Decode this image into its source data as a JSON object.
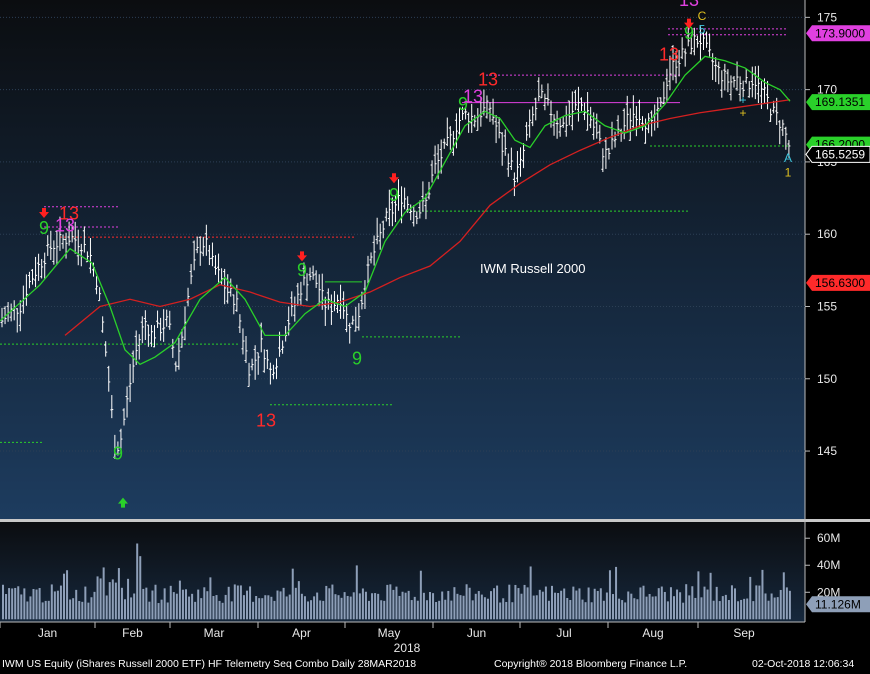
{
  "footer": {
    "left": "IWM US Equity (iShares Russell 2000 ETF) HF Telemetry Seq Combo  Daily 28MAR2018",
    "center": "Copyright® 2018 Bloomberg Finance L.P.",
    "right": "02-Oct-2018 12:06:34"
  },
  "colors": {
    "background_top": "#0b0d10",
    "background_bottom": "#1d3c5f",
    "price_bar": "#ffffff",
    "ma_fast": "#2ad02a",
    "ma_slow": "#d42020",
    "magenta_level": "#e040e0",
    "green_level": "#2ad02a",
    "red_level": "#ff2a2a",
    "volume": "#8e9fb8"
  },
  "chart_data": {
    "type": "line",
    "series_label": "IWM Russell 2000",
    "x_months": [
      "Jan",
      "Feb",
      "Mar",
      "Apr",
      "May",
      "Jun",
      "Jul",
      "Aug",
      "Sep"
    ],
    "x_year_label": "2018",
    "y_ticks": [
      145,
      150,
      155,
      160,
      165,
      170,
      175
    ],
    "ylim": [
      140.3,
      176.2
    ],
    "volume_ticks": [
      "60M",
      "40M",
      "20M"
    ],
    "volume_tick_values": [
      60,
      40,
      20
    ],
    "volume_ylim": [
      -2,
      72
    ],
    "price_tags": [
      {
        "value": 173.9,
        "label": "173.9000",
        "color": "#e040e0"
      },
      {
        "value": 169.1351,
        "label": "169.1351",
        "color": "#2ad02a"
      },
      {
        "value": 166.2,
        "label": "166.2000",
        "color": "#2ad02a"
      },
      {
        "value": 165.5259,
        "label": "165.5259",
        "color": "#ffffff"
      },
      {
        "value": 156.63,
        "label": "156.6300",
        "color": "#ff2a2a"
      }
    ],
    "volume_tag": {
      "value": 11.126,
      "label": "11.126M"
    },
    "key_points": [
      [
        2,
        154.0
      ],
      [
        10,
        154.6
      ],
      [
        20,
        155.0
      ],
      [
        28,
        156.5
      ],
      [
        36,
        157.5
      ],
      [
        44,
        158.4
      ],
      [
        52,
        159.2
      ],
      [
        60,
        159.5
      ],
      [
        70,
        159.8
      ],
      [
        80,
        159.5
      ],
      [
        90,
        158.6
      ],
      [
        98,
        156.5
      ],
      [
        104,
        153.0
      ],
      [
        110,
        149.0
      ],
      [
        115,
        145.2
      ],
      [
        120,
        145.5
      ],
      [
        126,
        148.0
      ],
      [
        132,
        150.5
      ],
      [
        138,
        152.5
      ],
      [
        145,
        154.0
      ],
      [
        152,
        153.0
      ],
      [
        160,
        153.5
      ],
      [
        168,
        154.0
      ],
      [
        176,
        151.0
      ],
      [
        182,
        153.0
      ],
      [
        190,
        156.5
      ],
      [
        198,
        159.0
      ],
      [
        205,
        159.5
      ],
      [
        212,
        158.0
      ],
      [
        220,
        157.0
      ],
      [
        228,
        156.0
      ],
      [
        236,
        155.5
      ],
      [
        244,
        152.5
      ],
      [
        250,
        150.5
      ],
      [
        256,
        151.5
      ],
      [
        262,
        152.5
      ],
      [
        270,
        150.5
      ],
      [
        278,
        151.5
      ],
      [
        286,
        153.5
      ],
      [
        294,
        155.0
      ],
      [
        302,
        156.5
      ],
      [
        310,
        157.2
      ],
      [
        318,
        156.5
      ],
      [
        324,
        155.2
      ],
      [
        332,
        155.0
      ],
      [
        340,
        155.8
      ],
      [
        348,
        154.0
      ],
      [
        356,
        153.8
      ],
      [
        362,
        155.5
      ],
      [
        370,
        158.0
      ],
      [
        378,
        159.5
      ],
      [
        386,
        161.0
      ],
      [
        394,
        161.8
      ],
      [
        402,
        162.7
      ],
      [
        410,
        162.0
      ],
      [
        418,
        161.5
      ],
      [
        426,
        162.2
      ],
      [
        434,
        164.5
      ],
      [
        442,
        165.5
      ],
      [
        450,
        166.5
      ],
      [
        458,
        167.8
      ],
      [
        466,
        168.3
      ],
      [
        474,
        168.0
      ],
      [
        482,
        168.5
      ],
      [
        490,
        168.8
      ],
      [
        496,
        167.5
      ],
      [
        502,
        166.0
      ],
      [
        508,
        165.5
      ],
      [
        514,
        164.0
      ],
      [
        520,
        164.6
      ],
      [
        526,
        166.5
      ],
      [
        532,
        168.0
      ],
      [
        540,
        169.5
      ],
      [
        548,
        168.8
      ],
      [
        556,
        168.0
      ],
      [
        564,
        167.5
      ],
      [
        572,
        168.5
      ],
      [
        580,
        169.0
      ],
      [
        588,
        168.5
      ],
      [
        596,
        167.0
      ],
      [
        602,
        165.8
      ],
      [
        608,
        165.5
      ],
      [
        614,
        166.5
      ],
      [
        620,
        167.0
      ],
      [
        628,
        168.0
      ],
      [
        636,
        168.5
      ],
      [
        644,
        168.0
      ],
      [
        652,
        167.3
      ],
      [
        660,
        168.5
      ],
      [
        668,
        171.0
      ],
      [
        676,
        172.0
      ],
      [
        684,
        172.5
      ],
      [
        692,
        173.3
      ],
      [
        700,
        173.5
      ],
      [
        708,
        172.5
      ],
      [
        716,
        171.5
      ],
      [
        722,
        171.0
      ],
      [
        730,
        170.5
      ],
      [
        738,
        170.8
      ],
      [
        746,
        170.3
      ],
      [
        754,
        170.8
      ],
      [
        760,
        170.0
      ],
      [
        766,
        169.5
      ],
      [
        772,
        168.5
      ],
      [
        778,
        168.0
      ],
      [
        784,
        167.3
      ],
      [
        788,
        166.3
      ],
      [
        792,
        165.5
      ]
    ],
    "ma_fast": [
      [
        0,
        154.0
      ],
      [
        40,
        156.5
      ],
      [
        70,
        159.0
      ],
      [
        92,
        158.0
      ],
      [
        110,
        155.0
      ],
      [
        125,
        152.0
      ],
      [
        140,
        151.0
      ],
      [
        155,
        151.5
      ],
      [
        175,
        152.5
      ],
      [
        200,
        155.5
      ],
      [
        225,
        157.0
      ],
      [
        245,
        155.5
      ],
      [
        265,
        153.0
      ],
      [
        285,
        153.0
      ],
      [
        305,
        154.5
      ],
      [
        325,
        155.5
      ],
      [
        345,
        155.0
      ],
      [
        365,
        156.0
      ],
      [
        385,
        159.5
      ],
      [
        405,
        161.5
      ],
      [
        425,
        162.5
      ],
      [
        445,
        165.0
      ],
      [
        465,
        167.5
      ],
      [
        485,
        168.5
      ],
      [
        500,
        168.0
      ],
      [
        515,
        166.5
      ],
      [
        530,
        166.0
      ],
      [
        545,
        167.5
      ],
      [
        565,
        168.2
      ],
      [
        585,
        168.5
      ],
      [
        605,
        167.5
      ],
      [
        625,
        167.0
      ],
      [
        645,
        167.5
      ],
      [
        665,
        169.0
      ],
      [
        685,
        171.0
      ],
      [
        705,
        172.3
      ],
      [
        725,
        172.0
      ],
      [
        745,
        171.5
      ],
      [
        765,
        170.5
      ],
      [
        780,
        170.0
      ],
      [
        790,
        169.2
      ]
    ],
    "ma_slow": [
      [
        65,
        153.0
      ],
      [
        100,
        155.0
      ],
      [
        130,
        155.5
      ],
      [
        160,
        155.0
      ],
      [
        190,
        155.5
      ],
      [
        220,
        156.5
      ],
      [
        250,
        156.0
      ],
      [
        280,
        155.3
      ],
      [
        310,
        155.0
      ],
      [
        340,
        155.3
      ],
      [
        370,
        156.0
      ],
      [
        400,
        157.0
      ],
      [
        430,
        157.8
      ],
      [
        460,
        159.5
      ],
      [
        490,
        162.0
      ],
      [
        520,
        163.5
      ],
      [
        550,
        164.8
      ],
      [
        580,
        165.8
      ],
      [
        610,
        166.7
      ],
      [
        640,
        167.5
      ],
      [
        670,
        168.0
      ],
      [
        700,
        168.4
      ],
      [
        730,
        168.7
      ],
      [
        760,
        169.0
      ],
      [
        790,
        169.3
      ]
    ],
    "levels": [
      {
        "x1": 0,
        "x2": 42,
        "y": 145.6,
        "color": "#2ad02a",
        "dashed": true
      },
      {
        "x1": 0,
        "x2": 240,
        "y": 152.4,
        "color": "#2ad02a",
        "dashed": true
      },
      {
        "x1": 44,
        "x2": 118,
        "y": 161.9,
        "color": "#e040e0",
        "dashed": true
      },
      {
        "x1": 44,
        "x2": 118,
        "y": 160.5,
        "color": "#e040e0",
        "dashed": true
      },
      {
        "x1": 60,
        "x2": 355,
        "y": 159.8,
        "color": "#ff2a2a",
        "dashed": true
      },
      {
        "x1": 270,
        "x2": 392,
        "y": 148.2,
        "color": "#2ad02a",
        "dashed": true
      },
      {
        "x1": 325,
        "x2": 362,
        "y": 156.7,
        "color": "#2ad02a",
        "dashed": false
      },
      {
        "x1": 362,
        "x2": 462,
        "y": 152.9,
        "color": "#2ad02a",
        "dashed": true
      },
      {
        "x1": 410,
        "x2": 690,
        "y": 161.6,
        "color": "#2ad02a",
        "dashed": true
      },
      {
        "x1": 462,
        "x2": 680,
        "y": 169.1,
        "color": "#e040e0",
        "dashed": false
      },
      {
        "x1": 486,
        "x2": 680,
        "y": 171.0,
        "color": "#e040e0",
        "dashed": true
      },
      {
        "x1": 650,
        "x2": 790,
        "y": 166.1,
        "color": "#2ad02a",
        "dashed": true
      },
      {
        "x1": 668,
        "x2": 788,
        "y": 174.2,
        "color": "#e040e0",
        "dashed": true
      },
      {
        "x1": 668,
        "x2": 788,
        "y": 173.8,
        "color": "#e040e0",
        "dashed": true
      }
    ],
    "annotations": [
      {
        "x": 44,
        "y": 160.0,
        "text": "9",
        "color": "#2ad02a"
      },
      {
        "x": 69,
        "y": 161.0,
        "text": "13",
        "color": "#ff2a2a"
      },
      {
        "x": 65,
        "y": 160.2,
        "text": "13",
        "color": "#e040e0"
      },
      {
        "x": 118,
        "y": 144.4,
        "text": "9",
        "color": "#2ad02a"
      },
      {
        "x": 266,
        "y": 146.7,
        "text": "13",
        "color": "#ff2a2a"
      },
      {
        "x": 302,
        "y": 157.1,
        "text": "9",
        "color": "#2ad02a"
      },
      {
        "x": 357,
        "y": 151.0,
        "text": "9",
        "color": "#2ad02a"
      },
      {
        "x": 394,
        "y": 162.3,
        "text": "9",
        "color": "#2ad02a"
      },
      {
        "x": 463,
        "y": 168.6,
        "text": "9",
        "color": "#2ad02a"
      },
      {
        "x": 488,
        "y": 170.3,
        "text": "13",
        "color": "#ff2a2a"
      },
      {
        "x": 473,
        "y": 169.1,
        "text": "13",
        "color": "#e040e0"
      },
      {
        "x": 669,
        "y": 172.0,
        "text": "13",
        "color": "#ff2a2a"
      },
      {
        "x": 689,
        "y": 173.5,
        "text": "9",
        "color": "#2ad02a"
      },
      {
        "x": 689,
        "y": 175.8,
        "text": "13",
        "color": "#e040e0"
      },
      {
        "x": 702,
        "y": 174.8,
        "text": "C",
        "color": "#e0c020"
      },
      {
        "x": 702,
        "y": 173.9,
        "text": "5",
        "color": "#40c8e0"
      },
      {
        "x": 788,
        "y": 165.0,
        "text": "A",
        "color": "#40c8e0"
      },
      {
        "x": 788,
        "y": 164.0,
        "text": "1",
        "color": "#e0c020"
      }
    ],
    "plus_marks": [
      {
        "x": 743,
        "y": 169.0,
        "color": "#40c8e0"
      },
      {
        "x": 743,
        "y": 168.1,
        "color": "#e0c020"
      }
    ],
    "arrows": [
      {
        "x": 44,
        "y": 161.4,
        "dir": "down",
        "color": "#ff2020"
      },
      {
        "x": 123,
        "y": 141.5,
        "dir": "up",
        "color": "#2ad02a"
      },
      {
        "x": 302,
        "y": 158.4,
        "dir": "down",
        "color": "#ff2020"
      },
      {
        "x": 394,
        "y": 163.8,
        "dir": "down",
        "color": "#ff2020"
      },
      {
        "x": 689,
        "y": 174.5,
        "dir": "down",
        "color": "#ff2020"
      }
    ]
  }
}
